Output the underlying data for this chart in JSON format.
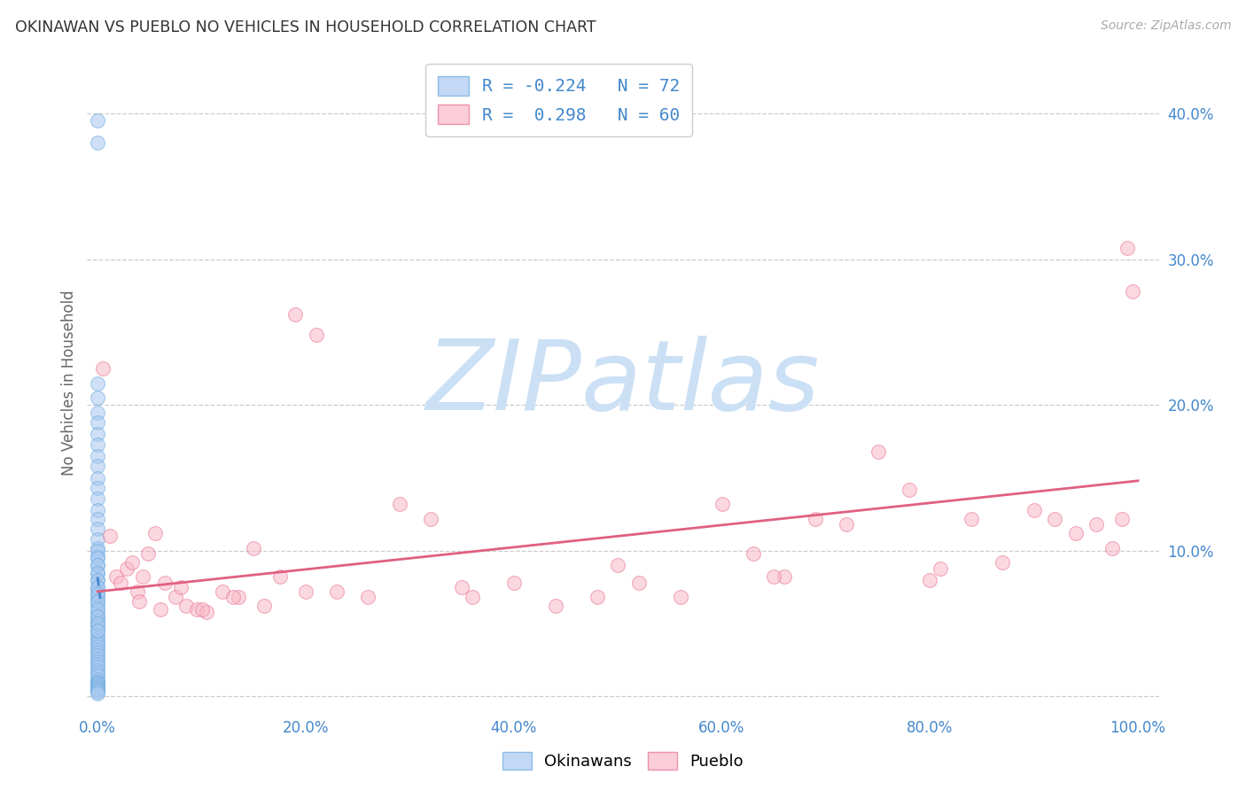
{
  "title": "OKINAWAN VS PUEBLO NO VEHICLES IN HOUSEHOLD CORRELATION CHART",
  "source": "Source: ZipAtlas.com",
  "ylabel": "No Vehicles in Household",
  "legend_label1": "Okinawans",
  "legend_label2": "Pueblo",
  "legend_r1": "R = -0.224",
  "legend_n1": "N = 72",
  "legend_r2": "R =  0.298",
  "legend_n2": "N = 60",
  "xlim": [
    -0.01,
    1.02
  ],
  "ylim": [
    -0.01,
    0.44
  ],
  "xticks": [
    0.0,
    0.2,
    0.4,
    0.6,
    0.8,
    1.0
  ],
  "xtick_labels": [
    "0.0%",
    "20.0%",
    "40.0%",
    "60.0%",
    "80.0%",
    "100.0%"
  ],
  "yticks": [
    0.0,
    0.1,
    0.2,
    0.3,
    0.4
  ],
  "ytick_labels": [
    "",
    "10.0%",
    "20.0%",
    "30.0%",
    "40.0%"
  ],
  "color_blue": "#a8c8f0",
  "color_blue_edge": "#6aaade",
  "color_pink": "#f8b8c8",
  "color_pink_edge": "#e87090",
  "color_trend_blue": "#4488cc",
  "color_trend_pink": "#e06080",
  "color_axis_ticks": "#4488cc",
  "color_grid": "#cccccc",
  "color_watermark": "#cce0f5",
  "background": "#ffffff",
  "okinawan_x": [
    0.0,
    0.0,
    0.0,
    0.0,
    0.0,
    0.0,
    0.0,
    0.0,
    0.0,
    0.0,
    0.0,
    0.0,
    0.0,
    0.0,
    0.0,
    0.0,
    0.0,
    0.0,
    0.0,
    0.0,
    0.0,
    0.0,
    0.0,
    0.0,
    0.0,
    0.0,
    0.0,
    0.0,
    0.0,
    0.0,
    0.0,
    0.0,
    0.0,
    0.0,
    0.0,
    0.0,
    0.0,
    0.0,
    0.0,
    0.0,
    0.0,
    0.0,
    0.0,
    0.0,
    0.0,
    0.0,
    0.0,
    0.0,
    0.0,
    0.0,
    0.0,
    0.0,
    0.0,
    0.0,
    0.0,
    0.0,
    0.0,
    0.0,
    0.0,
    0.0,
    0.0,
    0.0,
    0.0,
    0.0,
    0.0,
    0.0,
    0.0,
    0.0,
    0.0,
    0.0,
    0.0,
    0.0
  ],
  "okinawan_y": [
    0.395,
    0.38,
    0.215,
    0.205,
    0.195,
    0.188,
    0.18,
    0.173,
    0.165,
    0.158,
    0.15,
    0.143,
    0.136,
    0.128,
    0.122,
    0.115,
    0.108,
    0.102,
    0.096,
    0.09,
    0.085,
    0.08,
    0.075,
    0.072,
    0.068,
    0.065,
    0.062,
    0.058,
    0.055,
    0.052,
    0.05,
    0.048,
    0.045,
    0.042,
    0.04,
    0.038,
    0.036,
    0.034,
    0.032,
    0.03,
    0.028,
    0.026,
    0.024,
    0.022,
    0.02,
    0.018,
    0.016,
    0.014,
    0.012,
    0.01,
    0.01,
    0.009,
    0.008,
    0.007,
    0.006,
    0.005,
    0.005,
    0.004,
    0.003,
    0.002,
    0.1,
    0.095,
    0.09,
    0.085,
    0.08,
    0.075,
    0.07,
    0.065,
    0.06,
    0.055,
    0.05,
    0.045
  ],
  "pueblo_x": [
    0.005,
    0.012,
    0.018,
    0.022,
    0.028,
    0.033,
    0.038,
    0.043,
    0.048,
    0.055,
    0.065,
    0.075,
    0.085,
    0.095,
    0.105,
    0.12,
    0.135,
    0.15,
    0.16,
    0.175,
    0.19,
    0.21,
    0.23,
    0.26,
    0.29,
    0.32,
    0.36,
    0.4,
    0.44,
    0.48,
    0.52,
    0.56,
    0.6,
    0.63,
    0.66,
    0.69,
    0.72,
    0.75,
    0.78,
    0.81,
    0.84,
    0.87,
    0.9,
    0.92,
    0.94,
    0.96,
    0.975,
    0.985,
    0.99,
    0.995,
    0.04,
    0.06,
    0.08,
    0.1,
    0.13,
    0.2,
    0.35,
    0.5,
    0.65,
    0.8
  ],
  "pueblo_y": [
    0.225,
    0.11,
    0.082,
    0.078,
    0.088,
    0.092,
    0.072,
    0.082,
    0.098,
    0.112,
    0.078,
    0.068,
    0.062,
    0.06,
    0.058,
    0.072,
    0.068,
    0.102,
    0.062,
    0.082,
    0.262,
    0.248,
    0.072,
    0.068,
    0.132,
    0.122,
    0.068,
    0.078,
    0.062,
    0.068,
    0.078,
    0.068,
    0.132,
    0.098,
    0.082,
    0.122,
    0.118,
    0.168,
    0.142,
    0.088,
    0.122,
    0.092,
    0.128,
    0.122,
    0.112,
    0.118,
    0.102,
    0.122,
    0.308,
    0.278,
    0.065,
    0.06,
    0.075,
    0.06,
    0.068,
    0.072,
    0.075,
    0.09,
    0.082,
    0.08
  ],
  "okinawan_trend_x": [
    0.0,
    0.003
  ],
  "okinawan_trend_y": [
    0.082,
    0.064
  ],
  "pueblo_trend_x": [
    0.0,
    1.0
  ],
  "pueblo_trend_y": [
    0.072,
    0.148
  ],
  "watermark": "ZIPatlas",
  "marker_size": 130,
  "alpha_blue": 0.55,
  "alpha_pink": 0.55
}
